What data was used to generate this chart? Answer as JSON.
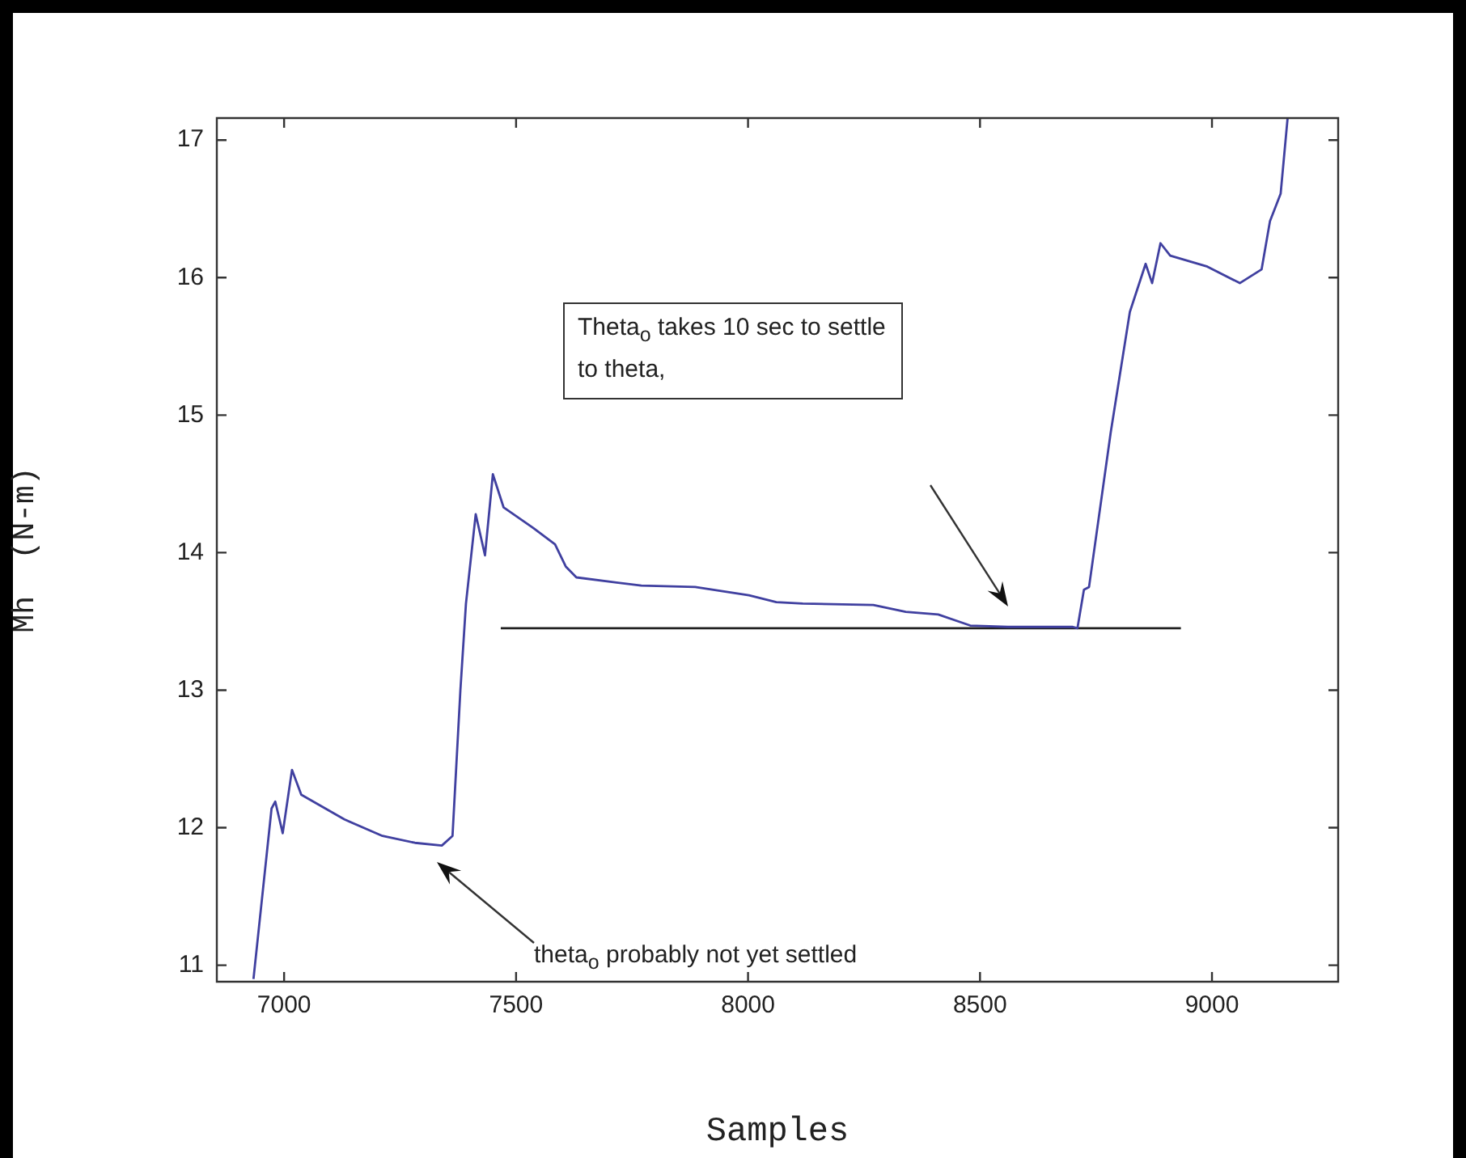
{
  "chart_data": {
    "type": "line",
    "xlabel": "Samples",
    "ylabel": "Mh  (N-m)",
    "xlim": [
      6855,
      9272
    ],
    "xticks": [
      7000,
      7500,
      8000,
      8500,
      9000
    ],
    "ylim": [
      10.88,
      17.16
    ],
    "yticks": [
      11,
      12,
      13,
      14,
      15,
      16,
      17
    ],
    "grid": false,
    "legend": false,
    "marker": "none",
    "line_style": "solid",
    "series": [
      {
        "color": "#4040a0",
        "x": [
          6934,
          6973,
          6981,
          6997,
          7017,
          7037,
          7130,
          7212,
          7282,
          7340,
          7363,
          7380,
          7392,
          7413,
          7433,
          7450,
          7473,
          7537,
          7584,
          7607,
          7630,
          7770,
          7886,
          8002,
          8061,
          8118,
          8270,
          8340,
          8410,
          8479,
          8560,
          8700,
          8710,
          8724,
          8735,
          8782,
          8823,
          8857,
          8871,
          8889,
          8910,
          8990,
          9060,
          9107,
          9125,
          9148,
          9163
        ],
        "values": [
          10.9,
          12.14,
          12.19,
          11.96,
          12.42,
          12.24,
          12.06,
          11.94,
          11.89,
          11.87,
          11.94,
          13.0,
          13.63,
          14.28,
          13.98,
          14.57,
          14.33,
          14.18,
          14.06,
          13.9,
          13.82,
          13.76,
          13.75,
          13.69,
          13.64,
          13.63,
          13.62,
          13.57,
          13.55,
          13.47,
          13.46,
          13.46,
          13.45,
          13.73,
          13.75,
          14.88,
          15.75,
          16.1,
          15.96,
          16.25,
          16.16,
          16.08,
          15.96,
          16.06,
          16.41,
          16.61,
          17.16
        ]
      },
      {
        "color": "#202020",
        "x": [
          7467,
          8933
        ],
        "values": [
          13.45,
          13.45
        ]
      }
    ],
    "annotations": [
      "Theta$_{o}$ takes 10 sec to settle\nto theta,",
      "theta$_{o}$ probably not yet settled"
    ]
  }
}
